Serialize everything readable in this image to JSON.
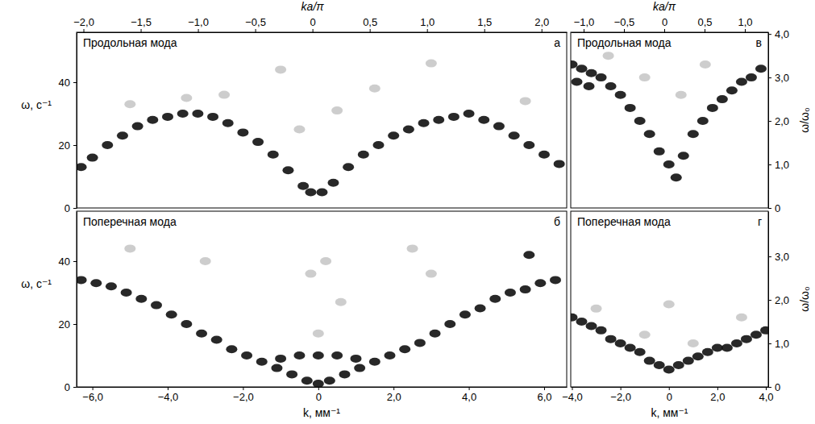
{
  "chart_data": [
    {
      "type": "scatter",
      "title": "Продольная мода",
      "panel_label": "а",
      "x2label": "ka/π",
      "x2lim": [
        -2.06,
        2.22
      ],
      "x2ticks": [
        {
          "value": -2.0,
          "label": "−2,0"
        },
        {
          "value": -1.5,
          "label": "−1,5"
        },
        {
          "value": -1.0,
          "label": "−1,0"
        },
        {
          "value": -0.5,
          "label": "−0,5"
        },
        0,
        {
          "value": 0.5,
          "label": "0,5"
        },
        {
          "value": 1.0,
          "label": "1,0"
        },
        {
          "value": 1.5,
          "label": "1,5"
        },
        {
          "value": 2.0,
          "label": "2,0"
        }
      ],
      "xlim": [
        -6.42,
        6.6
      ],
      "ylabel": "ω, с⁻¹",
      "ylim": [
        0,
        55.9
      ],
      "yticks": [
        0,
        20,
        40
      ],
      "series": [
        {
          "color": "#c8c8c8",
          "marker": "ellipse",
          "x": [
            -5.0,
            -3.5,
            -2.5,
            -1.0,
            1.5,
            3.0,
            5.5,
            0.5,
            -0.5
          ],
          "values": [
            33,
            35,
            36,
            44,
            38,
            46,
            34,
            31,
            25
          ]
        },
        {
          "color": "#111111",
          "marker": "ellipse",
          "x": [
            -6.3,
            -6.0,
            -5.6,
            -5.2,
            -4.8,
            -4.4,
            -4.0,
            -3.6,
            -3.2,
            -2.8,
            -2.4,
            -2.0,
            -1.6,
            -1.2,
            -0.8,
            -0.4,
            -0.2,
            0.1,
            0.4,
            0.8,
            1.2,
            1.6,
            2.0,
            2.4,
            2.8,
            3.2,
            3.6,
            4.0,
            4.4,
            4.8,
            5.2,
            5.6,
            6.0,
            6.4
          ],
          "values": [
            13,
            16,
            20,
            23,
            26,
            28,
            29,
            30,
            30,
            29,
            27,
            24,
            21,
            17,
            12,
            7,
            5,
            5,
            8,
            13,
            17,
            20,
            23,
            25,
            27,
            28,
            29,
            30,
            28,
            26,
            23,
            20,
            17,
            14
          ]
        }
      ]
    },
    {
      "type": "scatter",
      "title": "Поперечная мода",
      "panel_label": "б",
      "xlabel": "k, мм⁻¹",
      "xlim": [
        -6.42,
        6.6
      ],
      "xticks": [
        {
          "value": -6.0,
          "label": "−6,0"
        },
        {
          "value": -4.0,
          "label": "−4,0"
        },
        {
          "value": -2.0,
          "label": "−2,0"
        },
        0,
        {
          "value": 2.0,
          "label": "2,0"
        },
        {
          "value": 4.0,
          "label": "4,0"
        },
        {
          "value": 6.0,
          "label": "6,0"
        }
      ],
      "ylabel": "ω, с⁻¹",
      "ylim": [
        0,
        55.9
      ],
      "yticks": [
        0,
        20,
        40
      ],
      "series": [
        {
          "color": "#c8c8c8",
          "marker": "ellipse",
          "x": [
            -0.2,
            0.2,
            0.0,
            -3.0,
            3.0,
            -5.0,
            2.5,
            0.6
          ],
          "values": [
            36,
            40,
            17,
            40,
            36,
            44,
            44,
            27
          ]
        },
        {
          "color": "#111111",
          "marker": "ellipse",
          "x": [
            -6.3,
            -5.9,
            -5.5,
            -5.1,
            -4.7,
            -4.3,
            -3.9,
            -3.5,
            -3.1,
            -2.7,
            -2.3,
            -1.9,
            -1.5,
            -1.1,
            -0.7,
            -0.3,
            0.0,
            0.3,
            0.7,
            1.1,
            1.5,
            1.9,
            2.3,
            2.7,
            3.1,
            3.5,
            3.9,
            4.3,
            4.7,
            5.1,
            5.5,
            5.9,
            6.3,
            -1.0,
            -0.5,
            0.0,
            0.5,
            1.0,
            5.6
          ],
          "values": [
            34,
            33,
            32,
            30,
            28,
            26,
            23,
            20,
            17,
            15,
            12,
            10,
            8,
            6,
            4,
            2,
            1,
            2,
            4,
            6,
            8,
            10,
            12,
            14,
            17,
            20,
            23,
            25,
            28,
            30,
            31,
            33,
            34,
            9,
            10,
            10,
            10,
            9,
            42
          ]
        }
      ]
    },
    {
      "type": "scatter",
      "title": "Продольная мода",
      "panel_label": "в",
      "x2label": "ka/π",
      "x2lim": [
        -1.16,
        1.29
      ],
      "x2ticks": [
        {
          "value": -1.0,
          "label": "−1,0"
        },
        {
          "value": -0.5,
          "label": "−0,5"
        },
        0,
        {
          "value": 0.5,
          "label": "0,5"
        },
        {
          "value": 1.0,
          "label": "1,0"
        }
      ],
      "xlim": [
        -4.05,
        4.1
      ],
      "y2label": "ω/ω₀",
      "y2lim": [
        0,
        4.04
      ],
      "y2ticks": [
        0,
        {
          "value": 1.0,
          "label": "1,0"
        },
        {
          "value": 2.0,
          "label": "2,0"
        },
        {
          "value": 3.0,
          "label": "3,0"
        },
        {
          "value": 4.0,
          "label": "4,0"
        }
      ],
      "series": [
        {
          "color": "#c8c8c8",
          "marker": "ellipse",
          "axis": "y2",
          "x": [
            -1.0,
            1.5,
            0.5,
            -2.5
          ],
          "values": [
            3.0,
            3.3,
            2.6,
            3.5
          ]
        },
        {
          "color": "#111111",
          "marker": "ellipse",
          "axis": "y2",
          "x": [
            -4.0,
            -3.6,
            -3.2,
            -2.8,
            -2.4,
            -2.0,
            -1.6,
            -1.2,
            -0.8,
            -0.4,
            0.0,
            0.3,
            0.6,
            1.0,
            1.4,
            1.8,
            2.2,
            2.6,
            3.0,
            3.4,
            3.8,
            -3.8,
            -3.3
          ],
          "values": [
            3.3,
            3.2,
            3.1,
            3.0,
            2.8,
            2.6,
            2.3,
            2.0,
            1.7,
            1.3,
            1.0,
            0.7,
            1.2,
            1.7,
            2.0,
            2.3,
            2.5,
            2.7,
            2.9,
            3.0,
            3.2,
            2.9,
            2.8
          ]
        }
      ]
    },
    {
      "type": "scatter",
      "title": "Поперечная мода",
      "panel_label": "г",
      "xlabel": "k, мм⁻¹",
      "xlim": [
        -4.05,
        4.1
      ],
      "xticks": [
        {
          "value": -4.0,
          "label": "−4,0"
        },
        {
          "value": -2.0,
          "label": "−2,0"
        },
        0,
        {
          "value": 2.0,
          "label": "2,0"
        },
        {
          "value": 4.0,
          "label": "4,0"
        }
      ],
      "y2label": "ω/ω₀",
      "y2lim": [
        0,
        4.04
      ],
      "y2ticks": [
        0,
        {
          "value": 1.0,
          "label": "1,0"
        },
        {
          "value": 2.0,
          "label": "2,0"
        },
        {
          "value": 3.0,
          "label": "3,0"
        }
      ],
      "series": [
        {
          "color": "#c8c8c8",
          "marker": "ellipse",
          "axis": "y2",
          "x": [
            -3.0,
            -1.0,
            1.0,
            3.0,
            0.0
          ],
          "values": [
            1.8,
            1.2,
            1.0,
            1.6,
            1.9
          ]
        },
        {
          "color": "#111111",
          "marker": "ellipse",
          "axis": "y2",
          "x": [
            -4.0,
            -3.6,
            -3.2,
            -2.8,
            -2.4,
            -2.0,
            -1.6,
            -1.2,
            -0.8,
            -0.4,
            0.0,
            0.4,
            0.8,
            1.2,
            1.6,
            2.0,
            2.4,
            2.8,
            3.2,
            3.6,
            4.0
          ],
          "values": [
            1.6,
            1.5,
            1.4,
            1.3,
            1.1,
            1.0,
            0.9,
            0.8,
            0.6,
            0.5,
            0.4,
            0.5,
            0.6,
            0.7,
            0.8,
            0.9,
            0.9,
            1.0,
            1.1,
            1.2,
            1.3
          ]
        }
      ]
    }
  ]
}
